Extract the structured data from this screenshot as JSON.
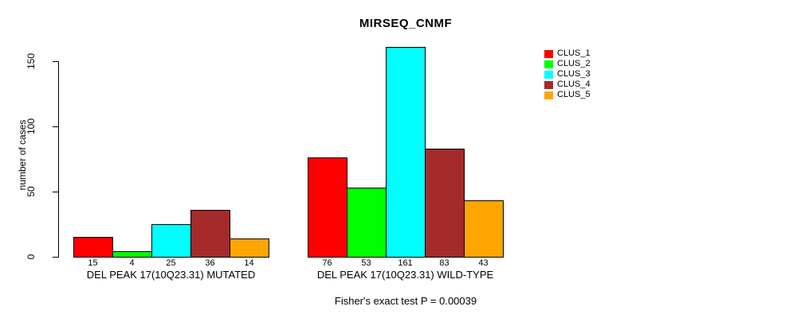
{
  "chart_data": {
    "type": "bar",
    "title": "MIRSEQ_CNMF",
    "xlabel": "",
    "ylabel": "number of cases",
    "ylim": [
      0,
      161
    ],
    "yticks": [
      0,
      50,
      100,
      150
    ],
    "grid": false,
    "legend_position": "right-outside-top",
    "categories": [
      "DEL PEAK 17(10Q23.31) MUTATED",
      "DEL PEAK 17(10Q23.31) WILD-TYPE"
    ],
    "series": [
      {
        "name": "CLUS_1",
        "color": "#FF0000",
        "values": [
          15,
          76
        ]
      },
      {
        "name": "CLUS_2",
        "color": "#00FF00",
        "values": [
          4,
          53
        ]
      },
      {
        "name": "CLUS_3",
        "color": "#00FFFF",
        "values": [
          25,
          161
        ]
      },
      {
        "name": "CLUS_4",
        "color": "#A52A2A",
        "values": [
          36,
          83
        ]
      },
      {
        "name": "CLUS_5",
        "color": "#FFA500",
        "values": [
          14,
          43
        ]
      }
    ],
    "bar_value_labels": [
      [
        15,
        4,
        25,
        36,
        14
      ],
      [
        76,
        53,
        161,
        83,
        43
      ]
    ],
    "annotation": "Fisher's exact test P = 0.00039"
  },
  "legend": {
    "entries": [
      {
        "label": "CLUS_1",
        "color": "#FF0000"
      },
      {
        "label": "CLUS_2",
        "color": "#00FF00"
      },
      {
        "label": "CLUS_3",
        "color": "#00FFFF"
      },
      {
        "label": "CLUS_4",
        "color": "#A52A2A"
      },
      {
        "label": "CLUS_5",
        "color": "#FFA500"
      }
    ]
  }
}
